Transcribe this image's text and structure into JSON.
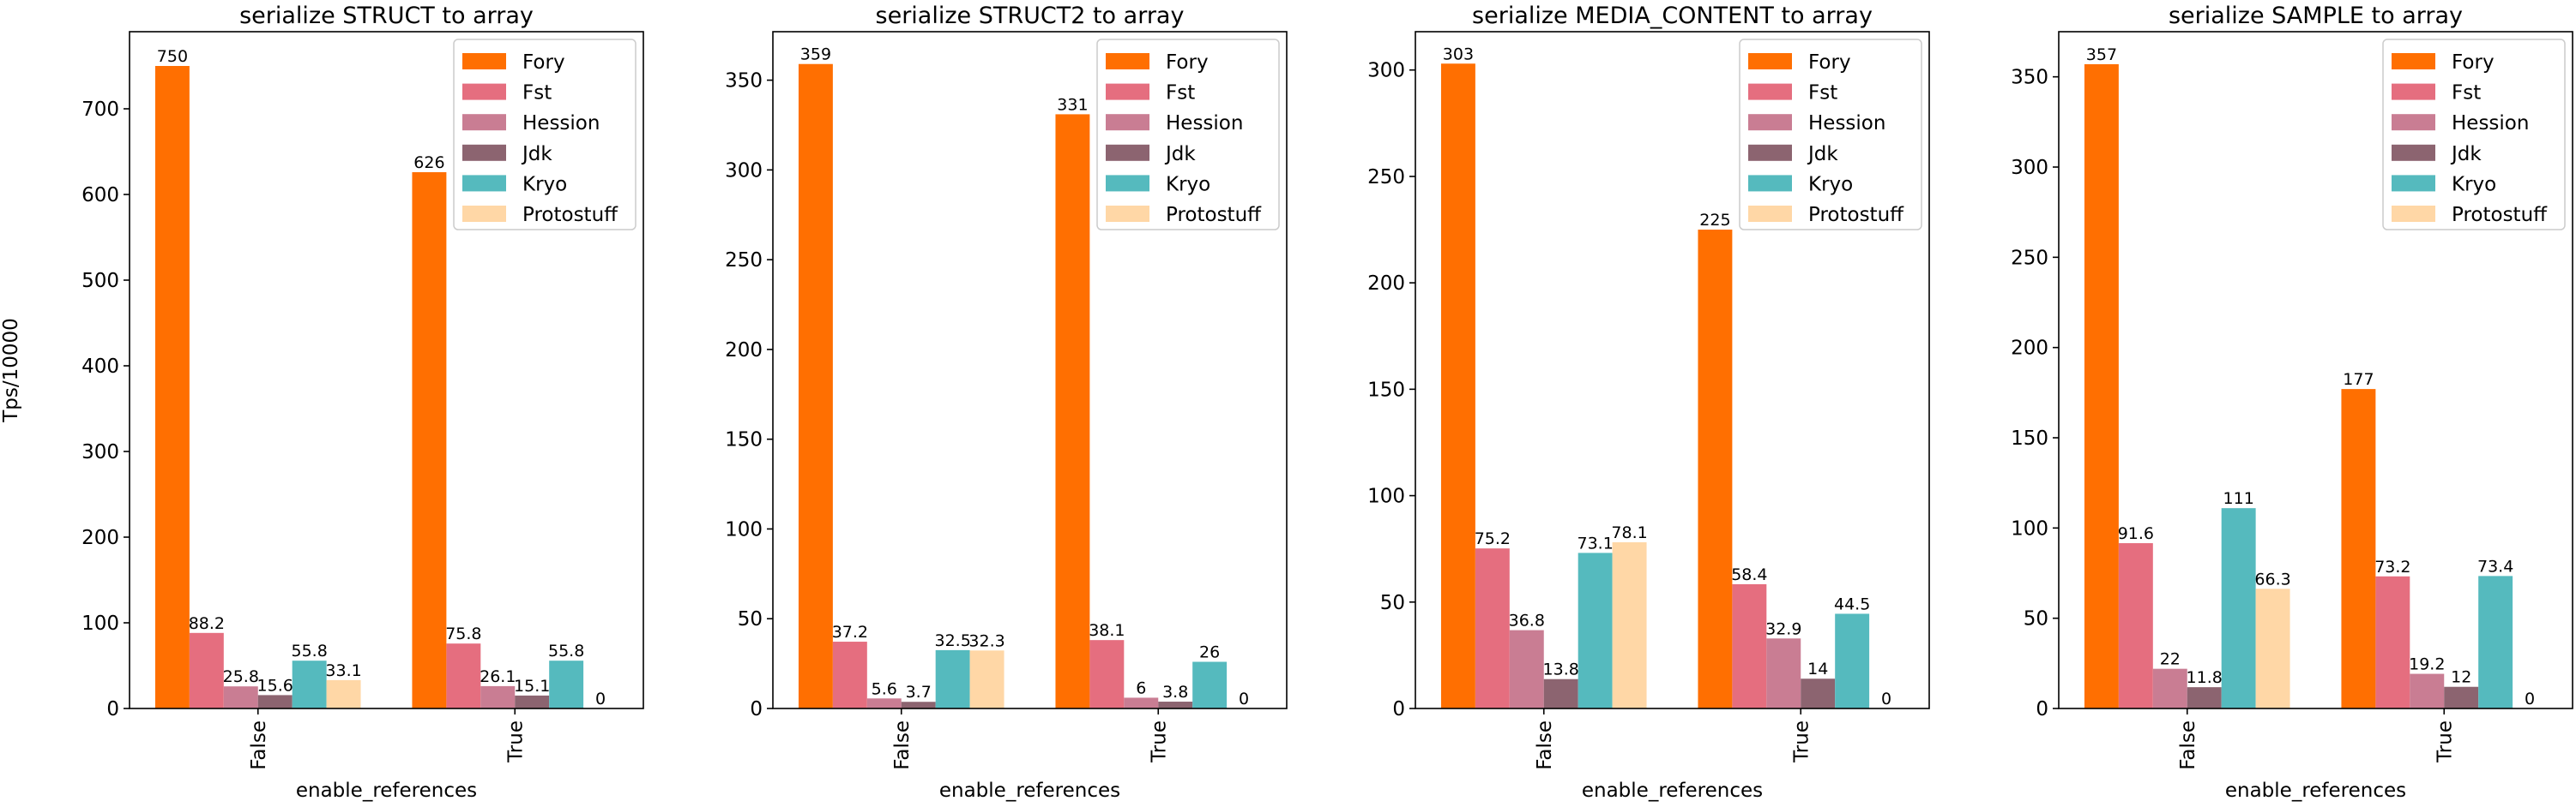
{
  "chart_data": [
    {
      "type": "bar",
      "title": "serialize STRUCT to array",
      "xlabel": "enable_references",
      "ylabel": "Tps/10000",
      "categories": [
        "False",
        "True"
      ],
      "ylim": [
        0,
        790
      ],
      "yticks": [
        0,
        100,
        200,
        300,
        400,
        500,
        600,
        700
      ],
      "series": [
        {
          "name": "Fory",
          "values": [
            750,
            626
          ],
          "labels": [
            "750",
            "626"
          ]
        },
        {
          "name": "Fst",
          "values": [
            88.2,
            75.8
          ],
          "labels": [
            "88.2",
            "75.8"
          ]
        },
        {
          "name": "Hession",
          "values": [
            25.8,
            26.1
          ],
          "labels": [
            "25.8",
            "26.1"
          ]
        },
        {
          "name": "Jdk",
          "values": [
            15.6,
            15.1
          ],
          "labels": [
            "15.6",
            "15.1"
          ]
        },
        {
          "name": "Kryo",
          "values": [
            55.8,
            55.8
          ],
          "labels": [
            "55.8",
            "55.8"
          ]
        },
        {
          "name": "Protostuff",
          "values": [
            33.1,
            0
          ],
          "labels": [
            "33.1",
            "0"
          ]
        }
      ],
      "legend": "top-right"
    },
    {
      "type": "bar",
      "title": "serialize STRUCT2 to array",
      "xlabel": "enable_references",
      "ylabel": "",
      "categories": [
        "False",
        "True"
      ],
      "ylim": [
        0,
        377
      ],
      "yticks": [
        0,
        50,
        100,
        150,
        200,
        250,
        300,
        350
      ],
      "series": [
        {
          "name": "Fory",
          "values": [
            359,
            331
          ],
          "labels": [
            "359",
            "331"
          ]
        },
        {
          "name": "Fst",
          "values": [
            37.2,
            38.1
          ],
          "labels": [
            "37.2",
            "38.1"
          ]
        },
        {
          "name": "Hession",
          "values": [
            5.6,
            6
          ],
          "labels": [
            "5.6",
            "6"
          ]
        },
        {
          "name": "Jdk",
          "values": [
            3.7,
            3.8
          ],
          "labels": [
            "3.7",
            "3.8"
          ]
        },
        {
          "name": "Kryo",
          "values": [
            32.5,
            26
          ],
          "labels": [
            "32.5",
            "26"
          ]
        },
        {
          "name": "Protostuff",
          "values": [
            32.3,
            0
          ],
          "labels": [
            "32.3",
            "0"
          ]
        }
      ],
      "legend": "top-right"
    },
    {
      "type": "bar",
      "title": "serialize MEDIA_CONTENT to array",
      "xlabel": "enable_references",
      "ylabel": "",
      "categories": [
        "False",
        "True"
      ],
      "ylim": [
        0,
        318
      ],
      "yticks": [
        0,
        50,
        100,
        150,
        200,
        250,
        300
      ],
      "series": [
        {
          "name": "Fory",
          "values": [
            303,
            225
          ],
          "labels": [
            "303",
            "225"
          ]
        },
        {
          "name": "Fst",
          "values": [
            75.2,
            58.4
          ],
          "labels": [
            "75.2",
            "58.4"
          ]
        },
        {
          "name": "Hession",
          "values": [
            36.8,
            32.9
          ],
          "labels": [
            "36.8",
            "32.9"
          ]
        },
        {
          "name": "Jdk",
          "values": [
            13.8,
            14
          ],
          "labels": [
            "13.8",
            "14"
          ]
        },
        {
          "name": "Kryo",
          "values": [
            73.1,
            44.5
          ],
          "labels": [
            "73.1",
            "44.5"
          ]
        },
        {
          "name": "Protostuff",
          "values": [
            78.1,
            0
          ],
          "labels": [
            "78.1",
            "0"
          ]
        }
      ],
      "legend": "top-right"
    },
    {
      "type": "bar",
      "title": "serialize SAMPLE to array",
      "xlabel": "enable_references",
      "ylabel": "",
      "categories": [
        "False",
        "True"
      ],
      "ylim": [
        0,
        375
      ],
      "yticks": [
        0,
        50,
        100,
        150,
        200,
        250,
        300,
        350
      ],
      "series": [
        {
          "name": "Fory",
          "values": [
            357,
            177
          ],
          "labels": [
            "357",
            "177"
          ]
        },
        {
          "name": "Fst",
          "values": [
            91.6,
            73.2
          ],
          "labels": [
            "91.6",
            "73.2"
          ]
        },
        {
          "name": "Hession",
          "values": [
            22,
            19.2
          ],
          "labels": [
            "22",
            "19.2"
          ]
        },
        {
          "name": "Jdk",
          "values": [
            11.8,
            12
          ],
          "labels": [
            "11.8",
            "12"
          ]
        },
        {
          "name": "Kryo",
          "values": [
            111,
            73.4
          ],
          "labels": [
            "111",
            "73.4"
          ]
        },
        {
          "name": "Protostuff",
          "values": [
            66.3,
            0
          ],
          "labels": [
            "66.3",
            "0"
          ]
        }
      ],
      "legend": "top-right"
    }
  ],
  "colors": {
    "Fory": "#ff6f01",
    "Fst": "#e56e7f",
    "Hession": "#c97d93",
    "Jdk": "#8c6470",
    "Kryo": "#55babe",
    "Protostuff": "#ffd7a6"
  }
}
